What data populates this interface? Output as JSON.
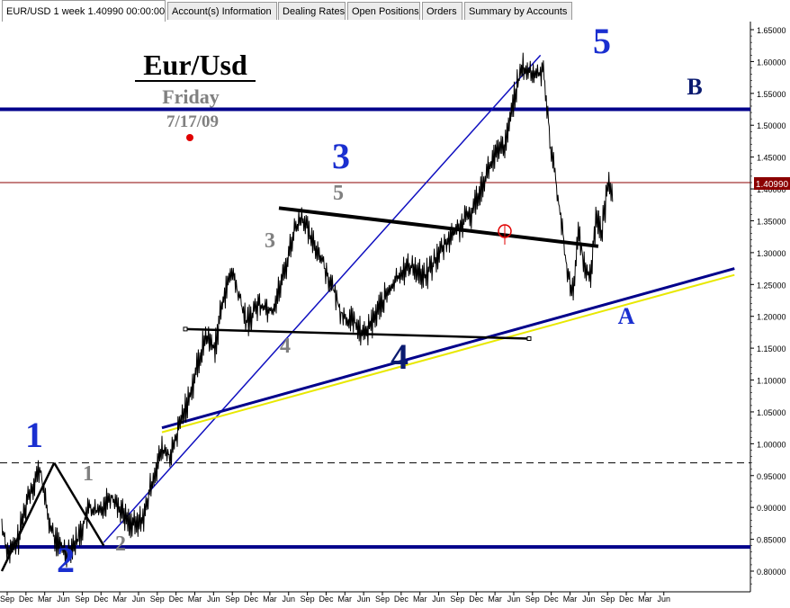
{
  "tabs": [
    {
      "label": "EUR/USD 1 week 1.40990 00:00:00",
      "active": true
    },
    {
      "label": "Account(s) Information"
    },
    {
      "label": "Dealing Rates"
    },
    {
      "label": "Open Positions"
    },
    {
      "label": "Orders"
    },
    {
      "label": "Summary by Accounts"
    }
  ],
  "chart_data": {
    "type": "line",
    "title": "Eur/Usd",
    "subtitle": "Friday",
    "date": "7/17/09",
    "instrument": "EUR/USD",
    "timeframe": "1 week",
    "current_price": "1.40990",
    "ylim": [
      0.77,
      1.67
    ],
    "y_ticks": [
      "1.65000",
      "1.60000",
      "1.55000",
      "1.50000",
      "1.45000",
      "1.40000",
      "1.35000",
      "1.30000",
      "1.25000",
      "1.20000",
      "1.15000",
      "1.10000",
      "1.05000",
      "1.00000",
      "0.95000",
      "0.90000",
      "0.85000",
      "0.80000"
    ],
    "x_ticks": [
      "Sep",
      "Dec",
      "Mar",
      "Jun",
      "Sep",
      "Dec",
      "Mar",
      "Jun",
      "Sep",
      "Dec",
      "Mar",
      "Jun",
      "Sep",
      "Dec",
      "Mar",
      "Jun",
      "Sep",
      "Dec",
      "Mar",
      "Jun",
      "Sep",
      "Dec",
      "Mar",
      "Jun",
      "Sep",
      "Dec",
      "Mar",
      "Jun",
      "Sep",
      "Dec",
      "Mar",
      "Jun",
      "Sep",
      "Dec",
      "Mar",
      "Jun"
    ],
    "x_start": "2000 Sep",
    "x_end": "2009 Jul",
    "series": [
      {
        "color": "#000000",
        "x": [
          0,
          1,
          2,
          3,
          4,
          5,
          6,
          7,
          8,
          9,
          10,
          11,
          12,
          13,
          14,
          15,
          16,
          17,
          18,
          19,
          20,
          21,
          22,
          23,
          24,
          25,
          26,
          27,
          28,
          29,
          30,
          31,
          32,
          33,
          34,
          35,
          36,
          37,
          38,
          39,
          40,
          41,
          42,
          43,
          44,
          45,
          46,
          47,
          48,
          49,
          50,
          51,
          52,
          53,
          54,
          55,
          56,
          57,
          58,
          59,
          60,
          61,
          62,
          63,
          64,
          65,
          66,
          67,
          68,
          69,
          70,
          71,
          72,
          73,
          74,
          75,
          76,
          77,
          78,
          79,
          80,
          81,
          82,
          83,
          84,
          85,
          86,
          87,
          88,
          89,
          90,
          91,
          92,
          93,
          94,
          95,
          96,
          97,
          98,
          99,
          100,
          101,
          102,
          103,
          104,
          105,
          106,
          107,
          108,
          109,
          110,
          111,
          112,
          113,
          114,
          115,
          116,
          117,
          118,
          119,
          120,
          121,
          122,
          123,
          124,
          125,
          126,
          127,
          128,
          129,
          130,
          131,
          132,
          133,
          134,
          135,
          136,
          137,
          138,
          139,
          140,
          141,
          142,
          143,
          144,
          145,
          146,
          147,
          148,
          149,
          150,
          151,
          152,
          153,
          154,
          155,
          156,
          157,
          158,
          159,
          160,
          161,
          162,
          163,
          164,
          165,
          166,
          167,
          168,
          169,
          170,
          171,
          172,
          173,
          174,
          175,
          176,
          177,
          178,
          179,
          180,
          181,
          182,
          183,
          184,
          185,
          186,
          187,
          188,
          189,
          190,
          191,
          192,
          193,
          194,
          195,
          196,
          197,
          198,
          199,
          200,
          201,
          202,
          203,
          204,
          205,
          206,
          207,
          208,
          209,
          210,
          211,
          212,
          213,
          214,
          215,
          216,
          217,
          218,
          219,
          220,
          221,
          222,
          223,
          224,
          225,
          226,
          227,
          228,
          229,
          230,
          231,
          232,
          233,
          234,
          235,
          236,
          237,
          238,
          239,
          240,
          241,
          242,
          243,
          244,
          245,
          246,
          247,
          248,
          249,
          250,
          251,
          252,
          253,
          254,
          255,
          256,
          257,
          258,
          259,
          260,
          261,
          262,
          263,
          264,
          265,
          266,
          267,
          268,
          269,
          270,
          271,
          272,
          273,
          274,
          275,
          276,
          277,
          278,
          279,
          280,
          281,
          282,
          283,
          284,
          285,
          286,
          287,
          288,
          289,
          290,
          291,
          292,
          293,
          294,
          295,
          296,
          297,
          298,
          299,
          300,
          301,
          302,
          303,
          304,
          305,
          306,
          307,
          308,
          309,
          310,
          311,
          312,
          313,
          314,
          315,
          316,
          317,
          318,
          319,
          320,
          321,
          322,
          323,
          324,
          325,
          326,
          327,
          328,
          329,
          330,
          331,
          332,
          333,
          334,
          335,
          336,
          337,
          338,
          339,
          340,
          341,
          342,
          343,
          344,
          345,
          346,
          347,
          348,
          349,
          350,
          351,
          352,
          353,
          354,
          355,
          356,
          357,
          358,
          359,
          360,
          361,
          362,
          363,
          364,
          365,
          366,
          367,
          368,
          369,
          370,
          371,
          372,
          373,
          374,
          375,
          376,
          377,
          378,
          379,
          380,
          381,
          382,
          383,
          384,
          385,
          386,
          387,
          388,
          389,
          390,
          391,
          392,
          393,
          394,
          395,
          396,
          397,
          398,
          399,
          400,
          401,
          402,
          403,
          404,
          405,
          406,
          407,
          408,
          409,
          410,
          411,
          412,
          413,
          414,
          415,
          416,
          417,
          418,
          419,
          420,
          421,
          422,
          423,
          424,
          425,
          426,
          427,
          428,
          429,
          430,
          431,
          432,
          433,
          434,
          435,
          436,
          437,
          438,
          439,
          440,
          441,
          442,
          443,
          444,
          445,
          446,
          447,
          448,
          449,
          450,
          451,
          452,
          453,
          454,
          455,
          456,
          457,
          458,
          459,
          460,
          461,
          462,
          463,
          464,
          465,
          466
        ],
        "keypoints": [
          [
            0,
            0.87
          ],
          [
            4,
            0.83
          ],
          [
            10,
            0.84
          ],
          [
            18,
            0.92
          ],
          [
            26,
            0.96
          ],
          [
            32,
            0.88
          ],
          [
            36,
            0.85
          ],
          [
            44,
            0.83
          ],
          [
            52,
            0.85
          ],
          [
            60,
            0.9
          ],
          [
            66,
            0.89
          ],
          [
            74,
            0.92
          ],
          [
            78,
            0.91
          ],
          [
            86,
            0.88
          ],
          [
            92,
            0.87
          ],
          [
            98,
            0.89
          ],
          [
            104,
            0.95
          ],
          [
            110,
            0.99
          ],
          [
            116,
            0.98
          ],
          [
            122,
            1.03
          ],
          [
            128,
            1.07
          ],
          [
            134,
            1.12
          ],
          [
            140,
            1.17
          ],
          [
            146,
            1.15
          ],
          [
            152,
            1.23
          ],
          [
            158,
            1.27
          ],
          [
            164,
            1.22
          ],
          [
            168,
            1.19
          ],
          [
            176,
            1.22
          ],
          [
            186,
            1.21
          ],
          [
            194,
            1.27
          ],
          [
            200,
            1.33
          ],
          [
            206,
            1.36
          ],
          [
            212,
            1.32
          ],
          [
            218,
            1.3
          ],
          [
            226,
            1.25
          ],
          [
            234,
            1.2
          ],
          [
            242,
            1.19
          ],
          [
            248,
            1.17
          ],
          [
            252,
            1.18
          ],
          [
            258,
            1.21
          ],
          [
            266,
            1.24
          ],
          [
            274,
            1.27
          ],
          [
            282,
            1.28
          ],
          [
            290,
            1.26
          ],
          [
            298,
            1.29
          ],
          [
            306,
            1.32
          ],
          [
            314,
            1.34
          ],
          [
            322,
            1.36
          ],
          [
            330,
            1.41
          ],
          [
            338,
            1.45
          ],
          [
            346,
            1.47
          ],
          [
            352,
            1.55
          ],
          [
            358,
            1.59
          ],
          [
            364,
            1.58
          ],
          [
            368,
            1.58
          ],
          [
            372,
            1.59
          ],
          [
            376,
            1.48
          ],
          [
            380,
            1.42
          ],
          [
            384,
            1.35
          ],
          [
            388,
            1.27
          ],
          [
            392,
            1.24
          ],
          [
            396,
            1.33
          ],
          [
            400,
            1.28
          ],
          [
            404,
            1.26
          ],
          [
            408,
            1.36
          ],
          [
            412,
            1.33
          ],
          [
            416,
            1.41
          ],
          [
            420,
            1.4
          ]
        ]
      }
    ],
    "horizontal_lines": [
      {
        "value": 1.525,
        "color": "#00008b",
        "label": "B"
      },
      {
        "value": 0.838,
        "color": "#00008b"
      },
      {
        "value": 0.97,
        "color": "#000000",
        "style": "dashed"
      },
      {
        "value": 1.4099,
        "color": "#8b0000",
        "label": "1.40990"
      }
    ],
    "trendlines": [
      {
        "from": [
          0,
          0.8
        ],
        "to": [
          36,
          0.97
        ],
        "color": "#000000"
      },
      {
        "from": [
          36,
          0.97
        ],
        "to": [
          70,
          0.84
        ],
        "color": "#000000"
      },
      {
        "from": [
          70,
          0.845
        ],
        "to": [
          370,
          1.61
        ],
        "color": "#1010c0"
      },
      {
        "from": [
          110,
          1.025
        ],
        "to": [
          460,
          1.275
        ],
        "color": "#00008b"
      },
      {
        "from": [
          110,
          1.018
        ],
        "to": [
          460,
          1.265
        ],
        "color": "#e8e800"
      },
      {
        "from": [
          310,
          1.37
        ],
        "to": [
          665,
          1.31
        ],
        "color": "#000000",
        "pixel": true
      },
      {
        "from": [
          206,
          1.18
        ],
        "to": [
          588,
          1.165
        ],
        "color": "#000000",
        "pixel": true
      }
    ],
    "annotations": [
      {
        "text": "1",
        "color": "#1a2fd0",
        "size": "big"
      },
      {
        "text": "2",
        "color": "#1a2fd0",
        "size": "big"
      },
      {
        "text": "3",
        "color": "#1a2fd0",
        "size": "big"
      },
      {
        "text": "4",
        "color": "#0a1a70",
        "size": "big"
      },
      {
        "text": "5",
        "color": "#1a2fd0",
        "size": "big"
      },
      {
        "text": "A",
        "color": "#1a2fd0",
        "size": "mid"
      },
      {
        "text": "B",
        "color": "#0a1a70",
        "size": "mid"
      },
      {
        "text": "1",
        "color": "#808080",
        "size": "small"
      },
      {
        "text": "2",
        "color": "#808080",
        "size": "small"
      },
      {
        "text": "3",
        "color": "#808080",
        "size": "small"
      },
      {
        "text": "4",
        "color": "#808080",
        "size": "small"
      },
      {
        "text": "5",
        "color": "#808080",
        "size": "small"
      }
    ]
  }
}
